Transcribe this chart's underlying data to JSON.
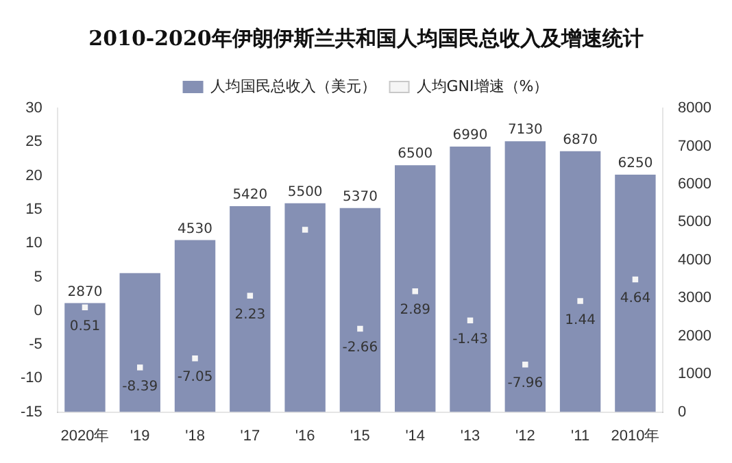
{
  "chart_data": {
    "type": "bar",
    "title": "2010-2020年伊朗伊斯兰共和国人均国民总收入及增速统计",
    "categories": [
      "2020年",
      "'19",
      "'18",
      "'17",
      "'16",
      "'15",
      "'14",
      "'13",
      "'12",
      "'11",
      "2010年"
    ],
    "series": [
      {
        "name": "人均国民总收入（美元）",
        "axis": "y2",
        "color": "#8590b4",
        "values": [
          2870,
          3660,
          4530,
          5420,
          5500,
          5370,
          6500,
          6990,
          7130,
          6870,
          6250
        ],
        "value_labels": [
          "2870",
          null,
          "4530",
          "5420",
          "5500",
          "5370",
          "6500",
          "6990",
          "7130",
          "6870",
          "6250"
        ]
      },
      {
        "name": "人均GNI增速（%）",
        "type": "scatter",
        "axis": "y",
        "color": "#f5f5f5",
        "values": [
          0.51,
          -8.39,
          -7.05,
          2.23,
          12,
          -2.66,
          2.89,
          -1.43,
          -7.96,
          1.44,
          4.64
        ],
        "value_labels": [
          "0.51",
          "-8.39",
          "-7.05",
          "2.23",
          null,
          "-2.66",
          "2.89",
          "-1.43",
          "-7.96",
          "1.44",
          "4.64"
        ]
      }
    ],
    "ylim": [
      -15,
      30
    ],
    "yticks": [
      -15,
      -10,
      -5,
      0,
      5,
      10,
      15,
      20,
      25,
      30
    ],
    "y2lim": [
      0,
      8000
    ],
    "y2ticks": [
      0,
      1000,
      2000,
      3000,
      4000,
      5000,
      6000,
      7000,
      8000
    ],
    "grid": false,
    "legend": "top"
  }
}
